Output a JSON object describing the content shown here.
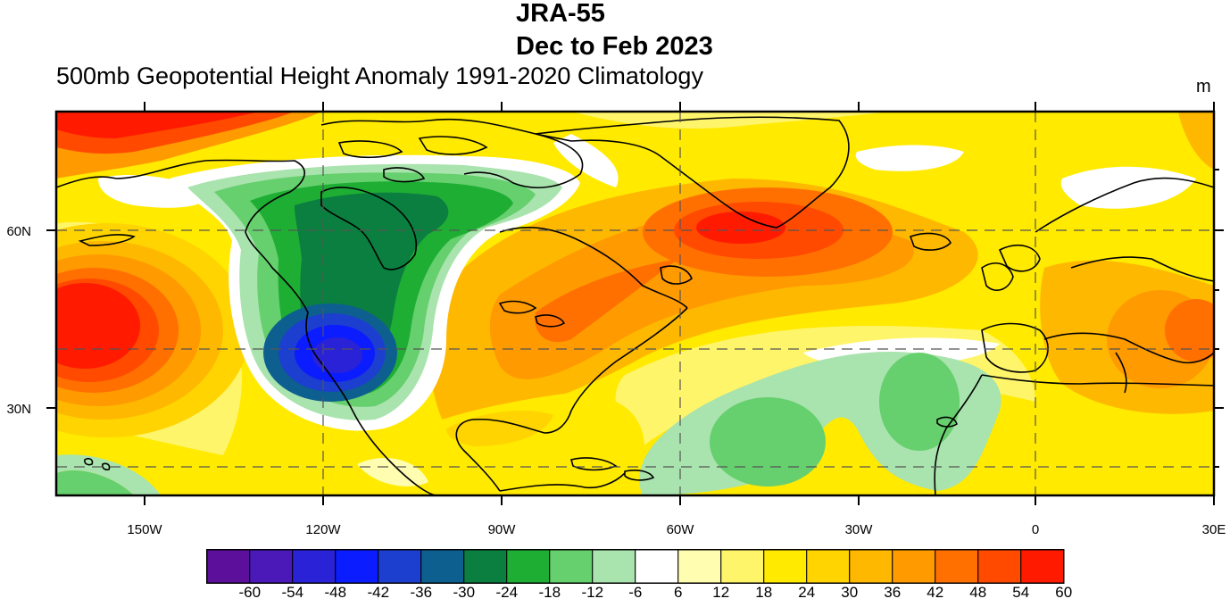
{
  "header": {
    "title_line1": "JRA-55",
    "title_line2": "Dec to Feb 2023",
    "subtitle": "500mb Geopotential Height Anomaly 1991-2020 Climatology",
    "unit": "m"
  },
  "map": {
    "longitude_labels": [
      "150W",
      "120W",
      "90W",
      "60W",
      "30W",
      "0",
      "30E"
    ],
    "latitude_labels": [
      "60N",
      "30N"
    ],
    "gridlines": "dashed"
  },
  "colorbar": {
    "labels": [
      "-60",
      "-54",
      "-48",
      "-42",
      "-36",
      "-30",
      "-24",
      "-18",
      "-12",
      "-6",
      "6",
      "12",
      "18",
      "24",
      "30",
      "36",
      "42",
      "48",
      "54",
      "60"
    ],
    "colors": [
      "#5b0f9a",
      "#4a19b8",
      "#2a22d6",
      "#0b1cff",
      "#1c3fcf",
      "#0d5f8f",
      "#0b7f3f",
      "#1fae34",
      "#66cf6e",
      "#a9e3ad",
      "#ffffff",
      "#fffdb0",
      "#fff56a",
      "#ffea00",
      "#ffd400",
      "#ffb800",
      "#ff9a00",
      "#ff7000",
      "#ff4a00",
      "#ff1a00"
    ]
  }
}
